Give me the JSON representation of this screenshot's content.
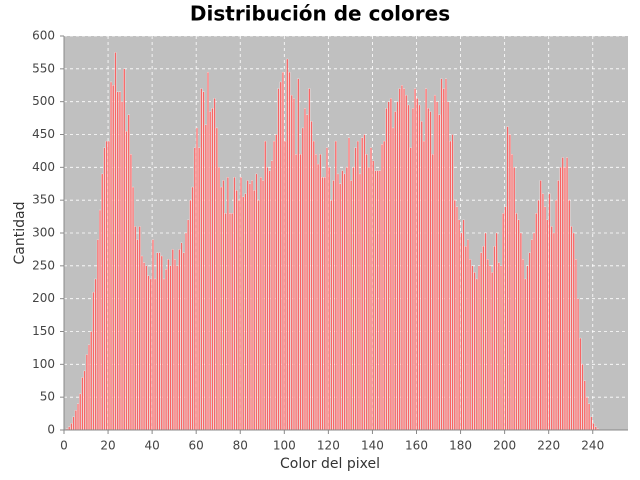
{
  "chart_data": {
    "type": "histogram",
    "title": "Distribución de colores",
    "xlabel": "Color del pixel",
    "ylabel": "Cantidad",
    "color": "#f86464",
    "grid": true,
    "xlim": [
      0,
      256
    ],
    "ylim": [
      0,
      600
    ],
    "xticks": [
      0,
      20,
      40,
      60,
      80,
      100,
      120,
      140,
      160,
      180,
      200,
      220,
      240
    ],
    "yticks": [
      0,
      50,
      100,
      150,
      200,
      250,
      300,
      350,
      400,
      450,
      500,
      550,
      600
    ],
    "bins": [
      0,
      1,
      2,
      3,
      4,
      5,
      6,
      7,
      8,
      9,
      10,
      11,
      12,
      13,
      14,
      15,
      16,
      17,
      18,
      19,
      20,
      21,
      22,
      23,
      24,
      25,
      26,
      27,
      28,
      29,
      30,
      31,
      32,
      33,
      34,
      35,
      36,
      37,
      38,
      39,
      40,
      41,
      42,
      43,
      44,
      45,
      46,
      47,
      48,
      49,
      50,
      51,
      52,
      53,
      54,
      55,
      56,
      57,
      58,
      59,
      60,
      61,
      62,
      63,
      64,
      65,
      66,
      67,
      68,
      69,
      70,
      71,
      72,
      73,
      74,
      75,
      76,
      77,
      78,
      79,
      80,
      81,
      82,
      83,
      84,
      85,
      86,
      87,
      88,
      89,
      90,
      91,
      92,
      93,
      94,
      95,
      96,
      97,
      98,
      99,
      100,
      101,
      102,
      103,
      104,
      105,
      106,
      107,
      108,
      109,
      110,
      111,
      112,
      113,
      114,
      115,
      116,
      117,
      118,
      119,
      120,
      121,
      122,
      123,
      124,
      125,
      126,
      127,
      128,
      129,
      130,
      131,
      132,
      133,
      134,
      135,
      136,
      137,
      138,
      139,
      140,
      141,
      142,
      143,
      144,
      145,
      146,
      147,
      148,
      149,
      150,
      151,
      152,
      153,
      154,
      155,
      156,
      157,
      158,
      159,
      160,
      161,
      162,
      163,
      164,
      165,
      166,
      167,
      168,
      169,
      170,
      171,
      172,
      173,
      174,
      175,
      176,
      177,
      178,
      179,
      180,
      181,
      182,
      183,
      184,
      185,
      186,
      187,
      188,
      189,
      190,
      191,
      192,
      193,
      194,
      195,
      196,
      197,
      198,
      199,
      200,
      201,
      202,
      203,
      204,
      205,
      206,
      207,
      208,
      209,
      210,
      211,
      212,
      213,
      214,
      215,
      216,
      217,
      218,
      219,
      220,
      221,
      222,
      223,
      224,
      225,
      226,
      227,
      228,
      229,
      230,
      231,
      232,
      233,
      234,
      235,
      236,
      237,
      238,
      239,
      240,
      241,
      242,
      243,
      244,
      245,
      246,
      247,
      248,
      249,
      250,
      251,
      252,
      253,
      254,
      255,
      256
    ],
    "counts": [
      0,
      2,
      5,
      10,
      20,
      30,
      40,
      55,
      80,
      90,
      115,
      130,
      150,
      210,
      230,
      290,
      335,
      390,
      430,
      440,
      440,
      530,
      525,
      575,
      515,
      515,
      500,
      550,
      455,
      480,
      420,
      370,
      310,
      290,
      310,
      265,
      255,
      250,
      235,
      230,
      290,
      230,
      270,
      270,
      265,
      230,
      245,
      260,
      250,
      275,
      260,
      250,
      275,
      285,
      270,
      300,
      320,
      350,
      370,
      430,
      460,
      430,
      520,
      515,
      465,
      545,
      485,
      490,
      505,
      460,
      400,
      370,
      380,
      330,
      385,
      330,
      330,
      385,
      365,
      350,
      385,
      355,
      360,
      380,
      375,
      380,
      365,
      390,
      350,
      385,
      380,
      440,
      400,
      395,
      410,
      440,
      450,
      520,
      530,
      545,
      440,
      565,
      545,
      510,
      505,
      420,
      535,
      420,
      460,
      490,
      480,
      520,
      470,
      440,
      420,
      405,
      420,
      385,
      385,
      430,
      400,
      350,
      380,
      440,
      390,
      375,
      395,
      390,
      400,
      445,
      380,
      400,
      430,
      440,
      390,
      445,
      450,
      420,
      400,
      430,
      410,
      395,
      395,
      395,
      435,
      440,
      490,
      500,
      505,
      460,
      485,
      500,
      520,
      525,
      520,
      510,
      495,
      430,
      490,
      520,
      505,
      495,
      470,
      440,
      520,
      490,
      485,
      420,
      510,
      500,
      480,
      535,
      520,
      535,
      500,
      440,
      450,
      350,
      340,
      320,
      300,
      320,
      280,
      290,
      260,
      250,
      240,
      230,
      250,
      270,
      280,
      300,
      260,
      250,
      240,
      280,
      300,
      255,
      250,
      330,
      340,
      462,
      450,
      420,
      400,
      330,
      320,
      300,
      260,
      230,
      250,
      270,
      290,
      300,
      330,
      350,
      380,
      360,
      340,
      320,
      360,
      310,
      300,
      350,
      380,
      400,
      415,
      400,
      415,
      350,
      310,
      300,
      260,
      200,
      140,
      100,
      75,
      50,
      40,
      20,
      10,
      5,
      2,
      0,
      0,
      0,
      0,
      0,
      0,
      0,
      0,
      0,
      0,
      0,
      0,
      0
    ]
  }
}
